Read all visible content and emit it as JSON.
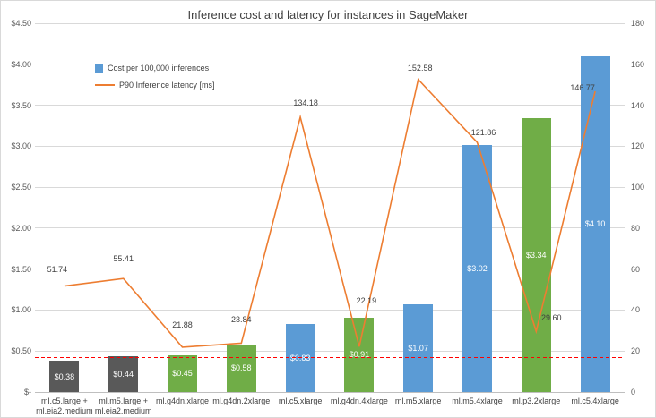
{
  "chart_data": {
    "type": "bar-line-combo",
    "title": "Inference cost and latency for instances in SageMaker",
    "categories": [
      "ml.c5.large +\nml.eia2.medium",
      "ml.m5.large +\nml.eia2.medium",
      "ml.g4dn.xlarge",
      "ml.g4dn.2xlarge",
      "ml.c5.xlarge",
      "ml.g4dn.4xlarge",
      "ml.m5.xlarge",
      "ml.m5.4xlarge",
      "ml.p3.2xlarge",
      "ml.c5.4xlarge"
    ],
    "series": [
      {
        "name": "Cost per 100,000 inferences",
        "type": "bar",
        "axis": "left",
        "values": [
          0.38,
          0.44,
          0.45,
          0.58,
          0.83,
          0.91,
          1.07,
          3.02,
          3.34,
          4.1
        ],
        "labels": [
          "$0.38",
          "$0.44",
          "$0.45",
          "$0.58",
          "$0.83",
          "$0.91",
          "$1.07",
          "$3.02",
          "$3.34",
          "$4.10"
        ],
        "bar_colors": [
          "#595959",
          "#595959",
          "#70AD47",
          "#70AD47",
          "#5B9BD5",
          "#70AD47",
          "#5B9BD5",
          "#5B9BD5",
          "#70AD47",
          "#5B9BD5"
        ],
        "legend_color": "#5B9BD5"
      },
      {
        "name": "P90 Inference latency [ms]",
        "type": "line",
        "axis": "right",
        "color": "#ED7D31",
        "values": [
          51.74,
          55.41,
          21.88,
          23.84,
          134.18,
          22.19,
          152.58,
          121.86,
          29.6,
          146.77
        ],
        "labels": [
          "51.74",
          "55.41",
          "21.88",
          "23.84",
          "134.18",
          "22.19",
          "152.58",
          "121.86",
          "29.60",
          "146.77"
        ]
      }
    ],
    "left_axis": {
      "min": 0,
      "max": 4.5,
      "step": 0.5,
      "tick_labels": [
        "$-",
        "$0.50",
        "$1.00",
        "$1.50",
        "$2.00",
        "$2.50",
        "$3.00",
        "$3.50",
        "$4.00",
        "$4.50"
      ]
    },
    "right_axis": {
      "min": 0,
      "max": 180,
      "step": 20,
      "tick_labels": [
        "0",
        "20",
        "40",
        "60",
        "80",
        "100",
        "120",
        "140",
        "160",
        "180"
      ]
    },
    "reference_line": {
      "value": 0.42,
      "axis": "left",
      "color": "#FF0000",
      "style": "dashed"
    },
    "grid": true,
    "legend_position": "upper-left"
  }
}
